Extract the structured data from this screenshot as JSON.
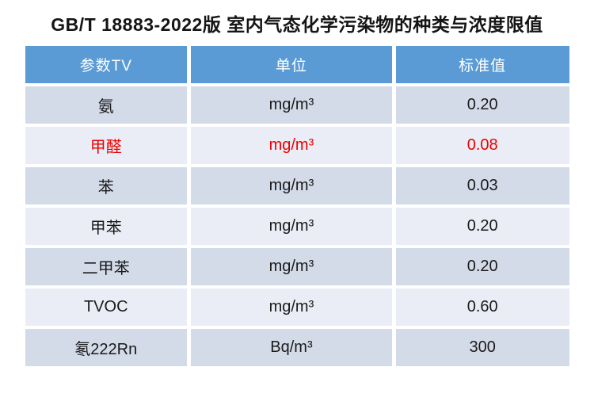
{
  "title": "GB/T 18883-2022版 室内气态化学污染物的种类与浓度限值",
  "table": {
    "headers": {
      "param": "参数TV",
      "unit": "单位",
      "value": "标准值"
    },
    "rows": [
      {
        "param": "氨",
        "unit": "mg/m³",
        "value": "0.20",
        "highlight": false
      },
      {
        "param": "甲醛",
        "unit": "mg/m³",
        "value": "0.08",
        "highlight": true
      },
      {
        "param": "苯",
        "unit": "mg/m³",
        "value": "0.03",
        "highlight": false
      },
      {
        "param": "甲苯",
        "unit": "mg/m³",
        "value": "0.20",
        "highlight": false
      },
      {
        "param": "二甲苯",
        "unit": "mg/m³",
        "value": "0.20",
        "highlight": false
      },
      {
        "param": "TVOC",
        "unit": "mg/m³",
        "value": "0.60",
        "highlight": false
      },
      {
        "param": "氡222Rn",
        "unit": "Bq/m³",
        "value": "300",
        "highlight": false
      }
    ]
  },
  "colors": {
    "header_bg": "#5B9BD5",
    "header_text": "#ffffff",
    "row_band_dark": "#D3DBE9",
    "row_band_light": "#EAEDF5",
    "body_text": "#1a1a1a",
    "highlight_text": "#EC0000",
    "page_bg": "#ffffff"
  },
  "chart_data": {
    "type": "table",
    "title": "GB/T 18883-2022版 室内气态化学污染物的种类与浓度限值",
    "columns": [
      "参数TV",
      "单位",
      "标准值"
    ],
    "rows": [
      [
        "氨",
        "mg/m³",
        "0.20"
      ],
      [
        "甲醛",
        "mg/m³",
        "0.08"
      ],
      [
        "苯",
        "mg/m³",
        "0.03"
      ],
      [
        "甲苯",
        "mg/m³",
        "0.20"
      ],
      [
        "二甲苯",
        "mg/m³",
        "0.20"
      ],
      [
        "TVOC",
        "mg/m³",
        "0.60"
      ],
      [
        "氡222Rn",
        "Bq/m³",
        "300"
      ]
    ],
    "annotations": "甲醛 (formaldehyde) row rendered in red for emphasis",
    "legend_position": "none",
    "grid": "banded-rows"
  }
}
